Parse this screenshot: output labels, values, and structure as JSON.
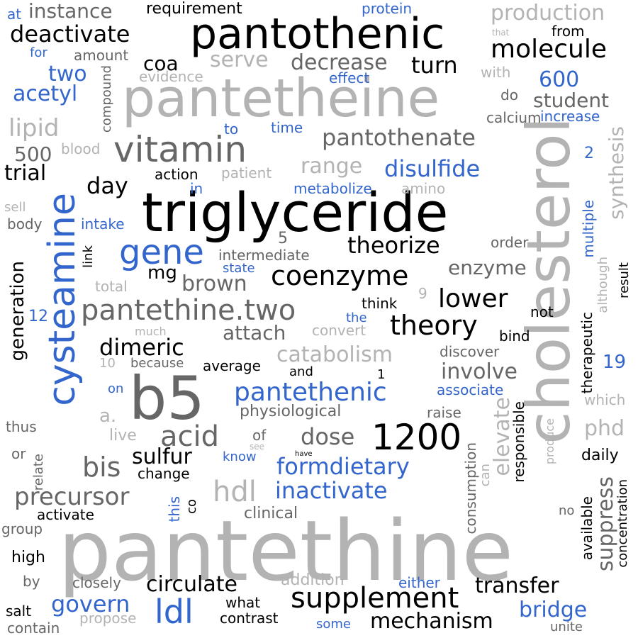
{
  "words": {
    "pantethine": "pantethine",
    "pantetheine": "pantetheine",
    "triglyceride": "triglyceride",
    "cholesterol": "cholesterol",
    "pantothenic": "pantothenic",
    "cysteamine": "cysteamine",
    "b5": "b5",
    "vitamin": "vitamin",
    "n1200": "1200",
    "pantethine_two": "pantethine.two",
    "coenzyme": "coenzyme",
    "theory": "theory",
    "supplement": "supplement",
    "gene": "gene",
    "pantethenic": "pantethenic",
    "acid": "acid",
    "molecule": "molecule",
    "ldl": "ldl",
    "hdl": "hdl",
    "deactivate": "deactivate",
    "pantothenate": "pantothenate",
    "disulfide": "disulfide",
    "theorize": "theorize",
    "lower": "lower",
    "dimeric": "dimeric",
    "mechanism": "mechanism",
    "catabolism": "catabolism",
    "precursor": "precursor",
    "inactivate": "inactivate",
    "formdietary": "formdietary",
    "bis": "bis",
    "dose": "dose",
    "sulfur": "sulfur",
    "transfer": "transfer",
    "circulate": "circulate",
    "govern": "govern",
    "bridge": "bridge",
    "involve": "involve",
    "elevate": "elevate",
    "suppress": "suppress",
    "phd": "phd",
    "production": "production",
    "decrease": "decrease",
    "turn": "turn",
    "serve": "serve",
    "lipid": "lipid",
    "acetyl": "acetyl",
    "two": "two",
    "coa": "coa",
    "student": "student",
    "day": "day",
    "trial": "trial",
    "range": "range",
    "brown": "brown",
    "attach": "attach",
    "enzyme": "enzyme",
    "synthesis": "synthesis",
    "generation": "generation",
    "mg": "mg",
    "n600": "600",
    "instance": "instance",
    "requirement": "requirement",
    "protein": "protein",
    "from": "from",
    "at": "at",
    "for": "for",
    "amount": "amount",
    "that": "that",
    "evidence": "evidence",
    "effect": "effect",
    "with": "with",
    "do": "do",
    "compound": "compound",
    "calcium": "calcium",
    "increase": "increase",
    "to": "to",
    "time": "time",
    "n500": "500",
    "blood": "blood",
    "n2": "2",
    "action": "action",
    "patient": "patient",
    "in": "in",
    "metabolize": "metabolize",
    "amino": "amino",
    "sell": "sell",
    "body": "body",
    "intake": "intake",
    "n5": "5",
    "multiple": "multiple",
    "intermediate": "intermediate",
    "order": "order",
    "link": "link",
    "state": "state",
    "although": "although",
    "result": "result",
    "total": "total",
    "n9": "9",
    "think": "think",
    "not": "not",
    "n12": "12",
    "the": "the",
    "therapeutic": "therapeutic",
    "much": "much",
    "convert": "convert",
    "bind": "bind",
    "discover": "discover",
    "n10": "10",
    "because": "because",
    "average": "average",
    "n19": "19",
    "and": "and",
    "n1": "1",
    "on": "on",
    "associate": "associate",
    "which": "which",
    "a": "a.",
    "physiological": "physiological",
    "raise": "raise",
    "thus": "thus",
    "live": "live",
    "of": "of",
    "see": "see",
    "produce": "produce",
    "or": "or",
    "know": "know",
    "have": "have",
    "consumption": "consumption",
    "can": "can",
    "responsible": "responsible",
    "daily": "daily",
    "relate": "relate",
    "change": "change",
    "available": "available",
    "concentration": "concentration",
    "activate": "activate",
    "this": "this",
    "co": "co",
    "clinical": "clinical",
    "no": "no",
    "group": "group",
    "high": "high",
    "by": "by",
    "closely": "closely",
    "addition": "addition",
    "either": "either",
    "what": "what",
    "salt": "salt",
    "propose": "propose",
    "contrast": "contrast",
    "contain": "contain",
    "some": "some",
    "unite": "unite"
  }
}
